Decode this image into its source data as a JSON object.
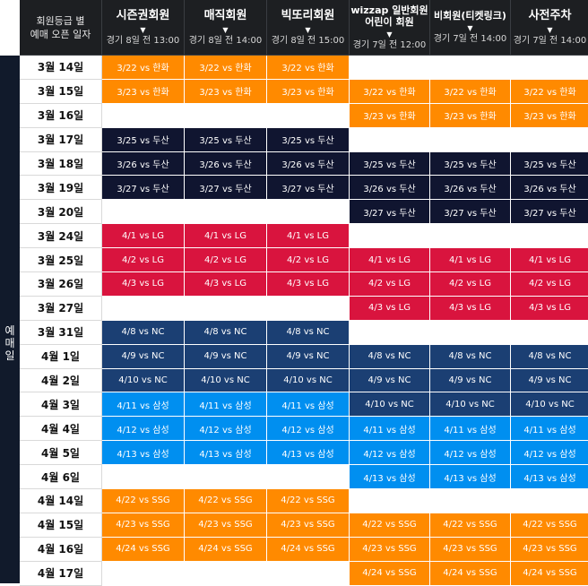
{
  "side_label": "예매일",
  "header": {
    "corner": [
      "회원등급 별",
      "예매 오픈 일자"
    ],
    "columns": [
      {
        "title": "시즌권회원",
        "time": "경기 8일 전 13:00"
      },
      {
        "title": "매직회원",
        "time": "경기 8일 전 14:00"
      },
      {
        "title": "빅또리회원",
        "time": "경기 8일 전 15:00"
      },
      {
        "title": "wizzap 일반회원 어린이 회원",
        "time": "경기 7일 전 12:00"
      },
      {
        "title": "비회원(티켓링크)",
        "time": "경기 7일 전 14:00"
      },
      {
        "title": "사전주차",
        "time": "경기 7일 전 14:00"
      }
    ]
  },
  "colors": {
    "orange": "#ff8a00",
    "navy": "#101530",
    "red": "#d9143e",
    "blue": "#1b3f73",
    "sky": "#008ff0"
  },
  "rows": [
    {
      "date": "3월 14일",
      "cells": [
        [
          "3/22 vs 한화",
          "orange"
        ],
        [
          "3/22 vs 한화",
          "orange"
        ],
        [
          "3/22 vs 한화",
          "orange"
        ],
        [
          "",
          ""
        ],
        [
          "",
          ""
        ],
        [
          "",
          ""
        ]
      ]
    },
    {
      "date": "3월 15일",
      "cells": [
        [
          "3/23 vs 한화",
          "orange"
        ],
        [
          "3/23 vs 한화",
          "orange"
        ],
        [
          "3/23 vs 한화",
          "orange"
        ],
        [
          "3/22 vs 한화",
          "orange"
        ],
        [
          "3/22 vs 한화",
          "orange"
        ],
        [
          "3/22 vs 한화",
          "orange"
        ]
      ]
    },
    {
      "date": "3월 16일",
      "cells": [
        [
          "",
          ""
        ],
        [
          "",
          ""
        ],
        [
          "",
          ""
        ],
        [
          "3/23 vs 한화",
          "orange"
        ],
        [
          "3/23 vs 한화",
          "orange"
        ],
        [
          "3/23 vs 한화",
          "orange"
        ]
      ]
    },
    {
      "date": "3월 17일",
      "cells": [
        [
          "3/25 vs 두산",
          "navy"
        ],
        [
          "3/25 vs 두산",
          "navy"
        ],
        [
          "3/25 vs 두산",
          "navy"
        ],
        [
          "",
          ""
        ],
        [
          "",
          ""
        ],
        [
          "",
          ""
        ]
      ]
    },
    {
      "date": "3월 18일",
      "cells": [
        [
          "3/26 vs 두산",
          "navy"
        ],
        [
          "3/26 vs 두산",
          "navy"
        ],
        [
          "3/26 vs 두산",
          "navy"
        ],
        [
          "3/25 vs 두산",
          "navy"
        ],
        [
          "3/25 vs 두산",
          "navy"
        ],
        [
          "3/25 vs 두산",
          "navy"
        ]
      ]
    },
    {
      "date": "3월 19일",
      "cells": [
        [
          "3/27 vs 두산",
          "navy"
        ],
        [
          "3/27 vs 두산",
          "navy"
        ],
        [
          "3/27 vs 두산",
          "navy"
        ],
        [
          "3/26 vs 두산",
          "navy"
        ],
        [
          "3/26 vs 두산",
          "navy"
        ],
        [
          "3/26 vs 두산",
          "navy"
        ]
      ]
    },
    {
      "date": "3월 20일",
      "cells": [
        [
          "",
          ""
        ],
        [
          "",
          ""
        ],
        [
          "",
          ""
        ],
        [
          "3/27 vs 두산",
          "navy"
        ],
        [
          "3/27 vs 두산",
          "navy"
        ],
        [
          "3/27 vs 두산",
          "navy"
        ]
      ]
    },
    {
      "date": "3월 24일",
      "cells": [
        [
          "4/1 vs LG",
          "red"
        ],
        [
          "4/1 vs LG",
          "red"
        ],
        [
          "4/1 vs LG",
          "red"
        ],
        [
          "",
          ""
        ],
        [
          "",
          ""
        ],
        [
          "",
          ""
        ]
      ]
    },
    {
      "date": "3월 25일",
      "cells": [
        [
          "4/2 vs LG",
          "red"
        ],
        [
          "4/2 vs LG",
          "red"
        ],
        [
          "4/2 vs LG",
          "red"
        ],
        [
          "4/1 vs LG",
          "red"
        ],
        [
          "4/1 vs LG",
          "red"
        ],
        [
          "4/1 vs LG",
          "red"
        ]
      ]
    },
    {
      "date": "3월 26일",
      "cells": [
        [
          "4/3 vs LG",
          "red"
        ],
        [
          "4/3 vs LG",
          "red"
        ],
        [
          "4/3 vs LG",
          "red"
        ],
        [
          "4/2 vs LG",
          "red"
        ],
        [
          "4/2 vs LG",
          "red"
        ],
        [
          "4/2 vs LG",
          "red"
        ]
      ]
    },
    {
      "date": "3월 27일",
      "cells": [
        [
          "",
          ""
        ],
        [
          "",
          ""
        ],
        [
          "",
          ""
        ],
        [
          "4/3 vs LG",
          "red"
        ],
        [
          "4/3 vs LG",
          "red"
        ],
        [
          "4/3 vs LG",
          "red"
        ]
      ]
    },
    {
      "date": "3월 31일",
      "cells": [
        [
          "4/8 vs NC",
          "blue"
        ],
        [
          "4/8 vs NC",
          "blue"
        ],
        [
          "4/8 vs NC",
          "blue"
        ],
        [
          "",
          ""
        ],
        [
          "",
          ""
        ],
        [
          "",
          ""
        ]
      ]
    },
    {
      "date": "4월 1일",
      "cells": [
        [
          "4/9 vs NC",
          "blue"
        ],
        [
          "4/9 vs NC",
          "blue"
        ],
        [
          "4/9 vs NC",
          "blue"
        ],
        [
          "4/8 vs NC",
          "blue"
        ],
        [
          "4/8 vs NC",
          "blue"
        ],
        [
          "4/8 vs NC",
          "blue"
        ]
      ]
    },
    {
      "date": "4월 2일",
      "cells": [
        [
          "4/10 vs NC",
          "blue"
        ],
        [
          "4/10 vs NC",
          "blue"
        ],
        [
          "4/10 vs NC",
          "blue"
        ],
        [
          "4/9 vs NC",
          "blue"
        ],
        [
          "4/9 vs NC",
          "blue"
        ],
        [
          "4/9 vs NC",
          "blue"
        ]
      ]
    },
    {
      "date": "4월 3일",
      "cells": [
        [
          "4/11 vs 삼성",
          "sky"
        ],
        [
          "4/11 vs 삼성",
          "sky"
        ],
        [
          "4/11 vs 삼성",
          "sky"
        ],
        [
          "4/10 vs NC",
          "blue"
        ],
        [
          "4/10 vs NC",
          "blue"
        ],
        [
          "4/10 vs NC",
          "blue"
        ]
      ]
    },
    {
      "date": "4월 4일",
      "cells": [
        [
          "4/12 vs 삼성",
          "sky"
        ],
        [
          "4/12 vs 삼성",
          "sky"
        ],
        [
          "4/12 vs 삼성",
          "sky"
        ],
        [
          "4/11 vs 삼성",
          "sky"
        ],
        [
          "4/11 vs 삼성",
          "sky"
        ],
        [
          "4/11 vs 삼성",
          "sky"
        ]
      ]
    },
    {
      "date": "4월 5일",
      "cells": [
        [
          "4/13 vs 삼성",
          "sky"
        ],
        [
          "4/13 vs 삼성",
          "sky"
        ],
        [
          "4/13 vs 삼성",
          "sky"
        ],
        [
          "4/12 vs 삼성",
          "sky"
        ],
        [
          "4/12 vs 삼성",
          "sky"
        ],
        [
          "4/12 vs 삼성",
          "sky"
        ]
      ]
    },
    {
      "date": "4월 6일",
      "cells": [
        [
          "",
          ""
        ],
        [
          "",
          ""
        ],
        [
          "",
          ""
        ],
        [
          "4/13 vs 삼성",
          "sky"
        ],
        [
          "4/13 vs 삼성",
          "sky"
        ],
        [
          "4/13 vs 삼성",
          "sky"
        ]
      ]
    },
    {
      "date": "4월 14일",
      "cells": [
        [
          "4/22 vs SSG",
          "orange"
        ],
        [
          "4/22 vs SSG",
          "orange"
        ],
        [
          "4/22 vs SSG",
          "orange"
        ],
        [
          "",
          ""
        ],
        [
          "",
          ""
        ],
        [
          "",
          ""
        ]
      ]
    },
    {
      "date": "4월 15일",
      "cells": [
        [
          "4/23 vs SSG",
          "orange"
        ],
        [
          "4/23 vs SSG",
          "orange"
        ],
        [
          "4/23 vs SSG",
          "orange"
        ],
        [
          "4/22 vs SSG",
          "orange"
        ],
        [
          "4/22 vs SSG",
          "orange"
        ],
        [
          "4/22 vs SSG",
          "orange"
        ]
      ]
    },
    {
      "date": "4월 16일",
      "cells": [
        [
          "4/24 vs SSG",
          "orange"
        ],
        [
          "4/24 vs SSG",
          "orange"
        ],
        [
          "4/24 vs SSG",
          "orange"
        ],
        [
          "4/23 vs SSG",
          "orange"
        ],
        [
          "4/23 vs SSG",
          "orange"
        ],
        [
          "4/23 vs SSG",
          "orange"
        ]
      ]
    },
    {
      "date": "4월 17일",
      "cells": [
        [
          "",
          ""
        ],
        [
          "",
          ""
        ],
        [
          "",
          ""
        ],
        [
          "4/24 vs SSG",
          "orange"
        ],
        [
          "4/24 vs SSG",
          "orange"
        ],
        [
          "4/24 vs SSG",
          "orange"
        ]
      ]
    }
  ]
}
